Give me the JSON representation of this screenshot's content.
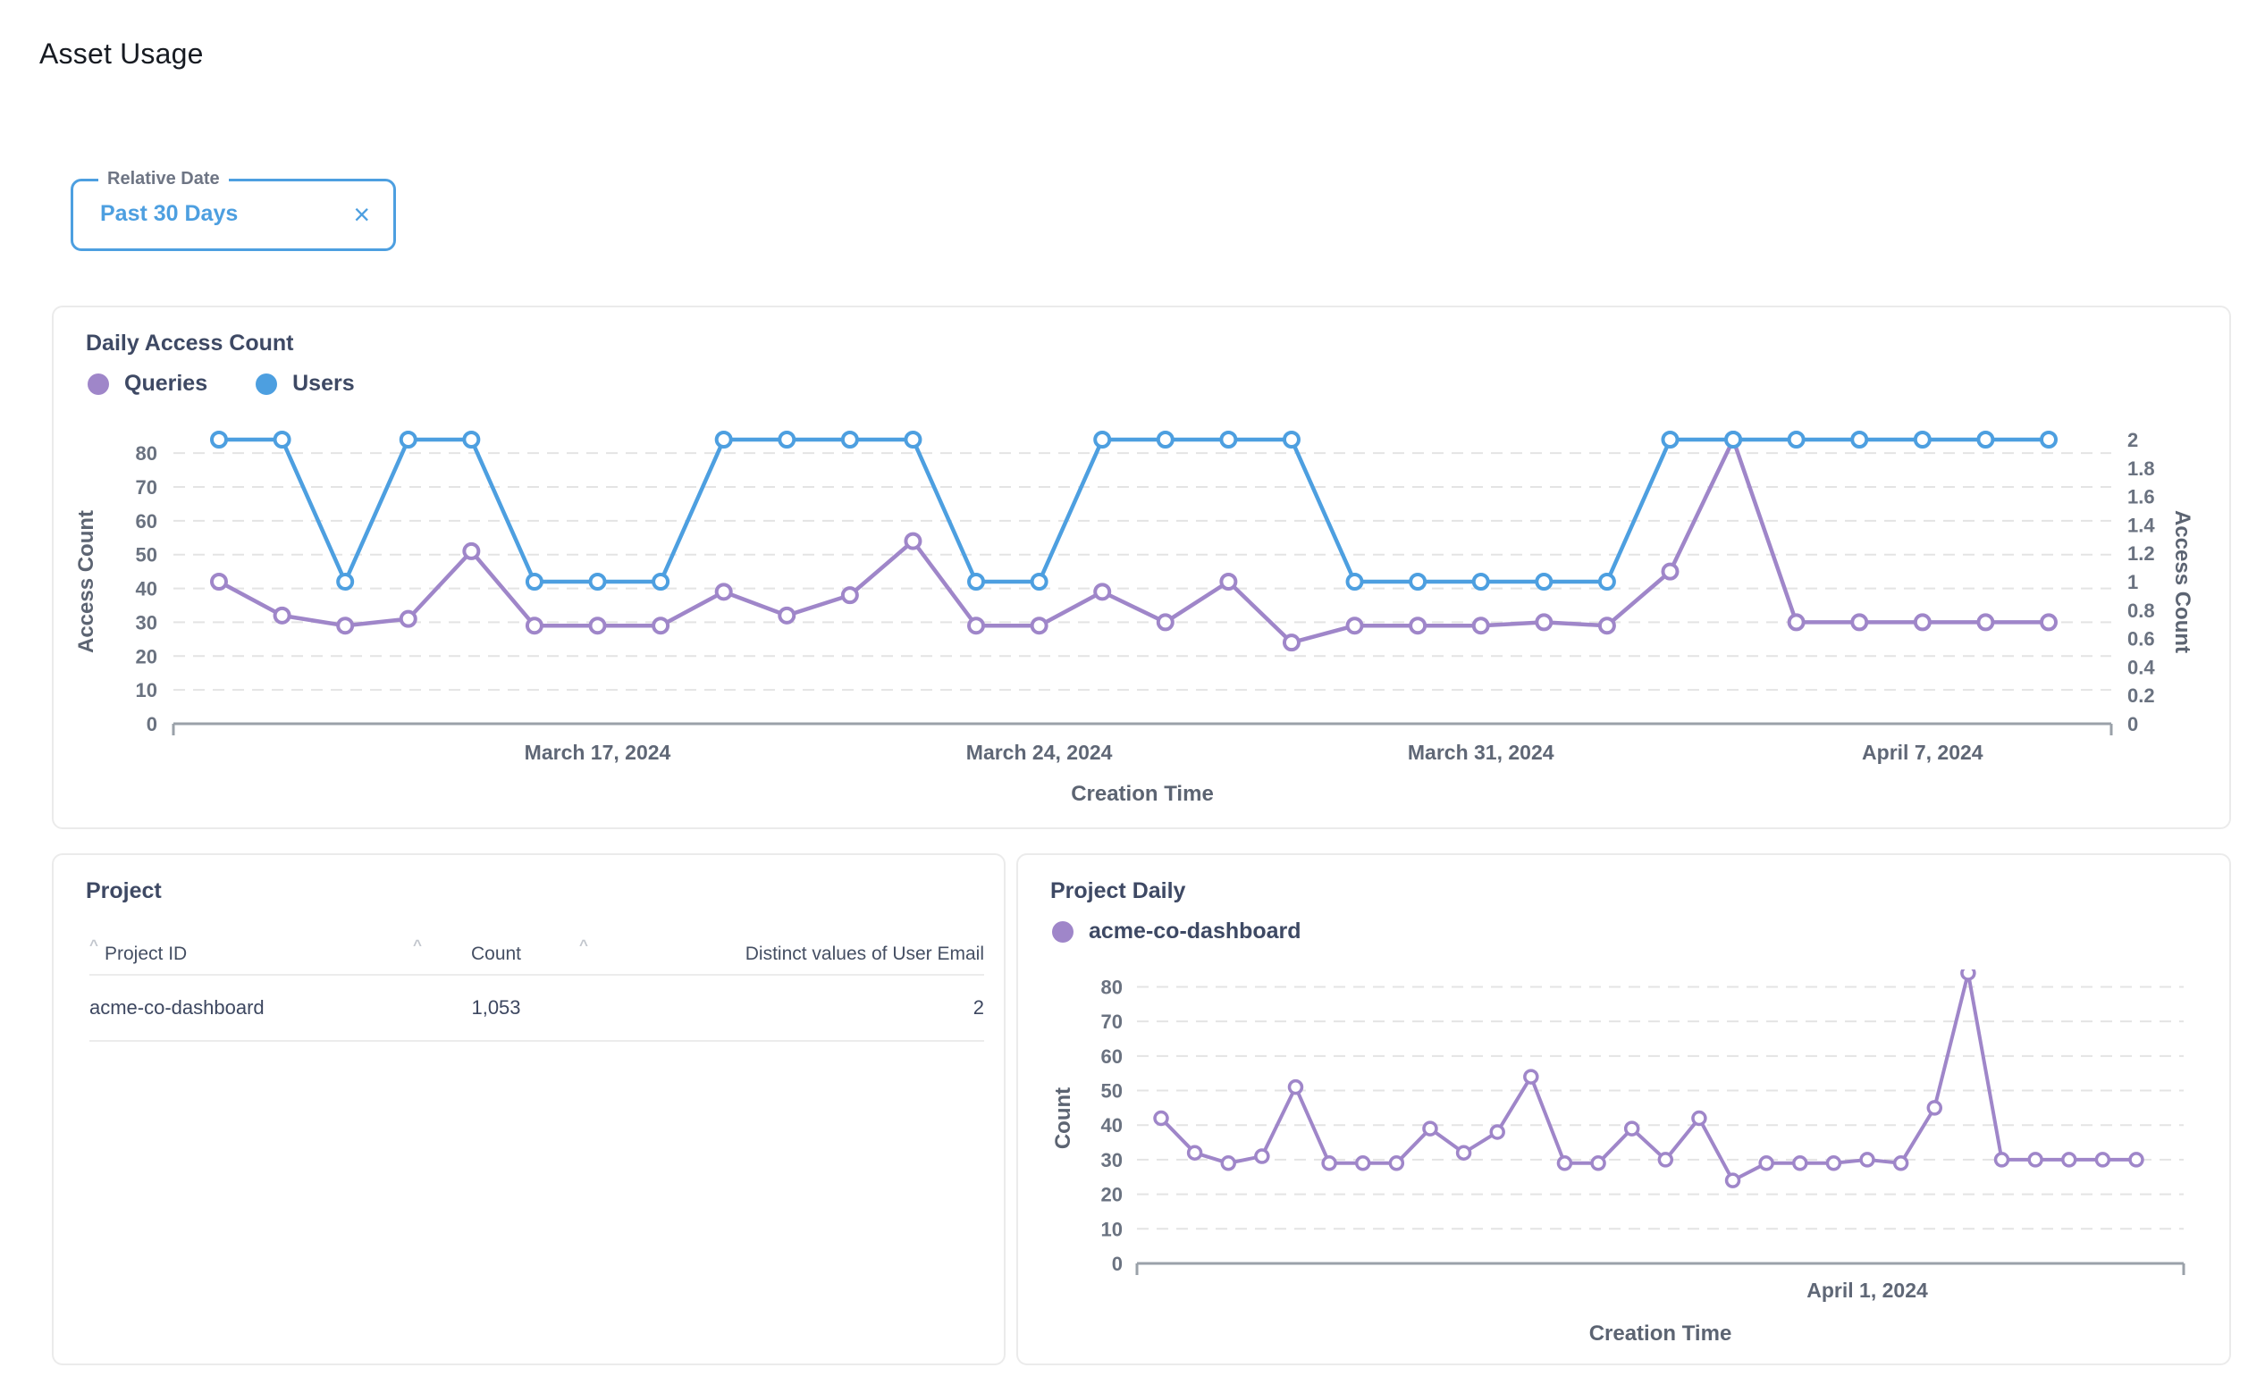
{
  "page": {
    "title": "Asset Usage"
  },
  "filter": {
    "label": "Relative Date",
    "value": "Past 30 Days",
    "clear_icon": "×"
  },
  "project_table": {
    "title": "Project",
    "sort_icon": "^",
    "columns": [
      "Project ID",
      "Count",
      "Distinct values of User Email"
    ],
    "rows": [
      [
        "acme-co-dashboard",
        "1,053",
        "2"
      ]
    ]
  },
  "chart_data": [
    {
      "id": "daily_access_count",
      "type": "line",
      "title": "Daily Access Count",
      "n_points": 30,
      "grid": "horizontal dashed",
      "legend_position": "top-left",
      "series": [
        {
          "name": "Queries",
          "color": "#9f86c9",
          "axis": "left",
          "values": [
            42,
            32,
            29,
            31,
            51,
            29,
            29,
            29,
            39,
            32,
            38,
            54,
            29,
            29,
            39,
            30,
            42,
            24,
            29,
            29,
            29,
            30,
            29,
            45,
            84,
            30,
            30,
            30,
            30,
            30
          ]
        },
        {
          "name": "Users",
          "color": "#4d9fe0",
          "axis": "right",
          "values": [
            2,
            2,
            1,
            2,
            2,
            1,
            1,
            1,
            2,
            2,
            2,
            2,
            1,
            1,
            2,
            2,
            2,
            2,
            1,
            1,
            1,
            1,
            1,
            2,
            2,
            2,
            2,
            2,
            2,
            2
          ]
        }
      ],
      "left_axis": {
        "title": "Access Count",
        "min": 0,
        "max": 84,
        "ticks": [
          0,
          10,
          20,
          30,
          40,
          50,
          60,
          70,
          80
        ]
      },
      "right_axis": {
        "title": "Access Count",
        "min": 0,
        "max": 2,
        "ticks": [
          0,
          0.2,
          0.4,
          0.6,
          0.8,
          1,
          1.2,
          1.4,
          1.6,
          1.8,
          2
        ]
      },
      "x_axis": {
        "title": "Creation Time",
        "tick_labels": [
          {
            "index": 6,
            "label": "March 17, 2024"
          },
          {
            "index": 13,
            "label": "March 24, 2024"
          },
          {
            "index": 20,
            "label": "March 31, 2024"
          },
          {
            "index": 27,
            "label": "April 7, 2024"
          }
        ]
      }
    },
    {
      "id": "project_daily",
      "type": "line",
      "title": "Project Daily",
      "n_points": 30,
      "grid": "horizontal dashed",
      "legend_position": "top-left",
      "series": [
        {
          "name": "acme-co-dashboard",
          "color": "#9f86c9",
          "axis": "left",
          "values": [
            42,
            32,
            29,
            31,
            51,
            29,
            29,
            29,
            39,
            32,
            38,
            54,
            29,
            29,
            39,
            30,
            42,
            24,
            29,
            29,
            29,
            30,
            29,
            45,
            84,
            30,
            30,
            30,
            30,
            30
          ]
        }
      ],
      "left_axis": {
        "title": "Count",
        "min": 0,
        "max": 84,
        "ticks": [
          0,
          10,
          20,
          30,
          40,
          50,
          60,
          70,
          80
        ]
      },
      "x_axis": {
        "title": "Creation Time",
        "tick_labels": [
          {
            "index": 21,
            "label": "April 1, 2024"
          }
        ]
      }
    }
  ]
}
